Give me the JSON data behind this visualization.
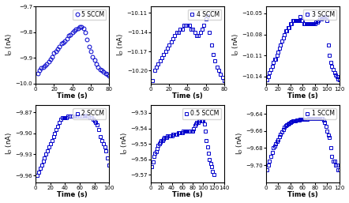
{
  "panels": [
    {
      "label": "5 SCCM",
      "marker": "o",
      "xlabel": "Time (s)",
      "ylabel": "I$_D$ (nA)",
      "xlim": [
        0,
        80
      ],
      "ylim": [
        -10.0,
        -9.7
      ],
      "yticks": [
        -10.0,
        -9.9,
        -9.8,
        -9.7
      ],
      "xticks": [
        0,
        20,
        40,
        60,
        80
      ],
      "x": [
        2,
        4,
        6,
        8,
        10,
        12,
        14,
        16,
        18,
        20,
        22,
        24,
        26,
        28,
        30,
        32,
        34,
        36,
        38,
        40,
        42,
        44,
        46,
        48,
        50,
        52,
        54,
        56,
        58,
        60,
        62,
        64,
        66,
        68,
        70,
        72,
        74,
        76,
        78,
        80
      ],
      "y": [
        -9.96,
        -9.95,
        -9.94,
        -9.935,
        -9.93,
        -9.925,
        -9.915,
        -9.905,
        -9.895,
        -9.88,
        -9.875,
        -9.865,
        -9.855,
        -9.845,
        -9.84,
        -9.835,
        -9.825,
        -9.815,
        -9.81,
        -9.8,
        -9.795,
        -9.79,
        -9.785,
        -9.78,
        -9.78,
        -9.785,
        -9.8,
        -9.83,
        -9.855,
        -9.875,
        -9.895,
        -9.91,
        -9.925,
        -9.935,
        -9.945,
        -9.95,
        -9.955,
        -9.96,
        -9.965,
        -9.97
      ]
    },
    {
      "label": "4 SCCM",
      "marker": "s",
      "xlabel": "Time (s)",
      "ylabel": "I$_D$ (nA)",
      "xlim": [
        0,
        80
      ],
      "ylim": [
        -10.22,
        -10.1
      ],
      "yticks": [
        -10.2,
        -10.17,
        -10.14,
        -10.11
      ],
      "xticks": [
        0,
        20,
        40,
        60,
        80
      ],
      "x": [
        2,
        4,
        6,
        8,
        10,
        12,
        14,
        16,
        18,
        20,
        22,
        24,
        26,
        28,
        30,
        32,
        34,
        36,
        38,
        40,
        42,
        44,
        46,
        48,
        50,
        52,
        54,
        56,
        58,
        60,
        62,
        64,
        66,
        68,
        70,
        72,
        74,
        76,
        78,
        80
      ],
      "y": [
        -10.215,
        -10.2,
        -10.195,
        -10.19,
        -10.185,
        -10.18,
        -10.175,
        -10.17,
        -10.165,
        -10.16,
        -10.155,
        -10.15,
        -10.145,
        -10.14,
        -10.14,
        -10.135,
        -10.135,
        -10.13,
        -10.13,
        -10.13,
        -10.13,
        -10.135,
        -10.135,
        -10.14,
        -10.145,
        -10.145,
        -10.14,
        -10.135,
        -10.13,
        -10.12,
        -10.115,
        -10.14,
        -10.16,
        -10.175,
        -10.185,
        -10.195,
        -10.2,
        -10.205,
        -10.21,
        -10.215
      ]
    },
    {
      "label": "3 SCCM",
      "marker": "s",
      "xlabel": "Time (s)",
      "ylabel": "I$_D$ (nA)",
      "xlim": [
        0,
        120
      ],
      "ylim": [
        -10.15,
        -10.04
      ],
      "yticks": [
        -10.14,
        -10.11,
        -10.08,
        -10.05
      ],
      "xticks": [
        0,
        20,
        40,
        60,
        80,
        100,
        120
      ],
      "x": [
        2,
        4,
        6,
        8,
        10,
        12,
        14,
        16,
        18,
        20,
        22,
        24,
        26,
        28,
        30,
        32,
        34,
        36,
        38,
        40,
        42,
        44,
        46,
        48,
        50,
        52,
        54,
        56,
        58,
        60,
        62,
        64,
        66,
        68,
        70,
        72,
        74,
        76,
        78,
        80,
        82,
        84,
        86,
        88,
        90,
        92,
        94,
        96,
        98,
        100,
        102,
        104,
        106,
        108,
        110,
        112,
        114,
        116,
        118,
        120
      ],
      "y": [
        -10.145,
        -10.14,
        -10.135,
        -10.13,
        -10.125,
        -10.12,
        -10.115,
        -10.115,
        -10.11,
        -10.105,
        -10.1,
        -10.095,
        -10.09,
        -10.085,
        -10.08,
        -10.075,
        -10.075,
        -10.07,
        -10.07,
        -10.065,
        -10.065,
        -10.06,
        -10.06,
        -10.06,
        -10.06,
        -10.06,
        -10.06,
        -10.055,
        -10.06,
        -10.06,
        -10.065,
        -10.065,
        -10.065,
        -10.065,
        -10.065,
        -10.065,
        -10.065,
        -10.065,
        -10.065,
        -10.065,
        -10.063,
        -10.062,
        -10.06,
        -10.058,
        -10.058,
        -10.057,
        -10.057,
        -10.055,
        -10.055,
        -10.06,
        -10.095,
        -10.11,
        -10.12,
        -10.125,
        -10.13,
        -10.135,
        -10.138,
        -10.14,
        -10.143,
        -10.145
      ]
    },
    {
      "label": "2 SCCM",
      "marker": "s",
      "xlabel": "Time (s)",
      "ylabel": "I$_D$ (nA)",
      "xlim": [
        0,
        100
      ],
      "ylim": [
        -9.97,
        -9.86
      ],
      "yticks": [
        -9.96,
        -9.93,
        -9.9,
        -9.87
      ],
      "xticks": [
        0,
        20,
        40,
        60,
        80,
        100
      ],
      "x": [
        2,
        4,
        6,
        8,
        10,
        12,
        14,
        16,
        18,
        20,
        22,
        24,
        26,
        28,
        30,
        32,
        34,
        36,
        38,
        40,
        42,
        44,
        46,
        48,
        50,
        52,
        54,
        56,
        58,
        60,
        62,
        64,
        66,
        68,
        70,
        72,
        74,
        76,
        78,
        80,
        82,
        84,
        86,
        88,
        90,
        92,
        94,
        96,
        98,
        100
      ],
      "y": [
        -9.96,
        -9.955,
        -9.95,
        -9.945,
        -9.94,
        -9.935,
        -9.93,
        -9.925,
        -9.92,
        -9.915,
        -9.91,
        -9.905,
        -9.9,
        -9.895,
        -9.89,
        -9.885,
        -9.88,
        -9.878,
        -9.878,
        -9.878,
        -9.878,
        -9.876,
        -9.875,
        -9.875,
        -9.875,
        -9.875,
        -9.875,
        -9.875,
        -9.875,
        -9.875,
        -9.875,
        -9.875,
        -9.874,
        -9.874,
        -9.876,
        -9.876,
        -9.878,
        -9.878,
        -9.88,
        -9.882,
        -9.885,
        -9.888,
        -9.895,
        -9.905,
        -9.91,
        -9.915,
        -9.92,
        -9.925,
        -9.935,
        -9.945
      ]
    },
    {
      "label": "0.5 SCCM",
      "marker": "s",
      "xlabel": "Time (s)",
      "ylabel": "I$_D$ (nA)",
      "xlim": [
        0,
        140
      ],
      "ylim": [
        -9.575,
        -9.525
      ],
      "yticks": [
        -9.57,
        -9.56,
        -9.55,
        -9.54,
        -9.53
      ],
      "xticks": [
        0,
        20,
        40,
        60,
        80,
        100,
        120,
        140
      ],
      "x": [
        2,
        4,
        6,
        8,
        10,
        12,
        14,
        16,
        18,
        20,
        22,
        24,
        26,
        28,
        30,
        32,
        34,
        36,
        38,
        40,
        42,
        44,
        46,
        48,
        50,
        52,
        54,
        56,
        58,
        60,
        62,
        64,
        66,
        68,
        70,
        72,
        74,
        76,
        78,
        80,
        82,
        84,
        86,
        88,
        90,
        92,
        94,
        96,
        98,
        100,
        102,
        104,
        106,
        108,
        110,
        112,
        114,
        116,
        118,
        120
      ],
      "y": [
        -9.565,
        -9.562,
        -9.558,
        -9.556,
        -9.555,
        -9.553,
        -9.551,
        -9.55,
        -9.549,
        -9.548,
        -9.548,
        -9.547,
        -9.546,
        -9.546,
        -9.546,
        -9.545,
        -9.545,
        -9.545,
        -9.545,
        -9.545,
        -9.544,
        -9.544,
        -9.544,
        -9.544,
        -9.544,
        -9.543,
        -9.543,
        -9.543,
        -9.543,
        -9.543,
        -9.542,
        -9.542,
        -9.542,
        -9.542,
        -9.542,
        -9.542,
        -9.542,
        -9.542,
        -9.542,
        -9.542,
        -9.54,
        -9.538,
        -9.537,
        -9.536,
        -9.536,
        -9.535,
        -9.535,
        -9.535,
        -9.535,
        -9.535,
        -9.537,
        -9.542,
        -9.548,
        -9.552,
        -9.556,
        -9.56,
        -9.563,
        -9.565,
        -9.568,
        -9.57
      ]
    },
    {
      "label": "1 SCCM",
      "marker": "s",
      "xlabel": "Time (s)",
      "ylabel": "I$_D$ (nA)",
      "xlim": [
        0,
        120
      ],
      "ylim": [
        -9.72,
        -9.63
      ],
      "yticks": [
        -9.7,
        -9.68,
        -9.66,
        -9.64
      ],
      "xticks": [
        0,
        20,
        40,
        60,
        80,
        100,
        120
      ],
      "x": [
        2,
        4,
        6,
        8,
        10,
        12,
        14,
        16,
        18,
        20,
        22,
        24,
        26,
        28,
        30,
        32,
        34,
        36,
        38,
        40,
        42,
        44,
        46,
        48,
        50,
        52,
        54,
        56,
        58,
        60,
        62,
        64,
        66,
        68,
        70,
        72,
        74,
        76,
        78,
        80,
        82,
        84,
        86,
        88,
        90,
        92,
        94,
        96,
        98,
        100,
        102,
        104,
        106,
        108,
        110,
        112,
        114,
        116,
        118,
        120
      ],
      "y": [
        -9.705,
        -9.7,
        -9.695,
        -9.69,
        -9.685,
        -9.68,
        -9.678,
        -9.675,
        -9.672,
        -9.67,
        -9.667,
        -9.664,
        -9.661,
        -9.658,
        -9.656,
        -9.654,
        -9.653,
        -9.652,
        -9.651,
        -9.65,
        -9.649,
        -9.648,
        -9.648,
        -9.648,
        -9.647,
        -9.647,
        -9.647,
        -9.646,
        -9.646,
        -9.646,
        -9.646,
        -9.646,
        -9.646,
        -9.646,
        -9.645,
        -9.645,
        -9.645,
        -9.645,
        -9.645,
        -9.645,
        -9.645,
        -9.645,
        -9.645,
        -9.645,
        -9.645,
        -9.645,
        -9.647,
        -9.65,
        -9.655,
        -9.66,
        -9.665,
        -9.668,
        -9.68,
        -9.69,
        -9.695,
        -9.695,
        -9.7,
        -9.7,
        -9.705,
        -9.705
      ]
    }
  ],
  "color": "#0000CC",
  "markersize": 3.5,
  "linewidth": 0,
  "title_fontsize": 6,
  "label_fontsize": 6,
  "tick_fontsize": 5
}
